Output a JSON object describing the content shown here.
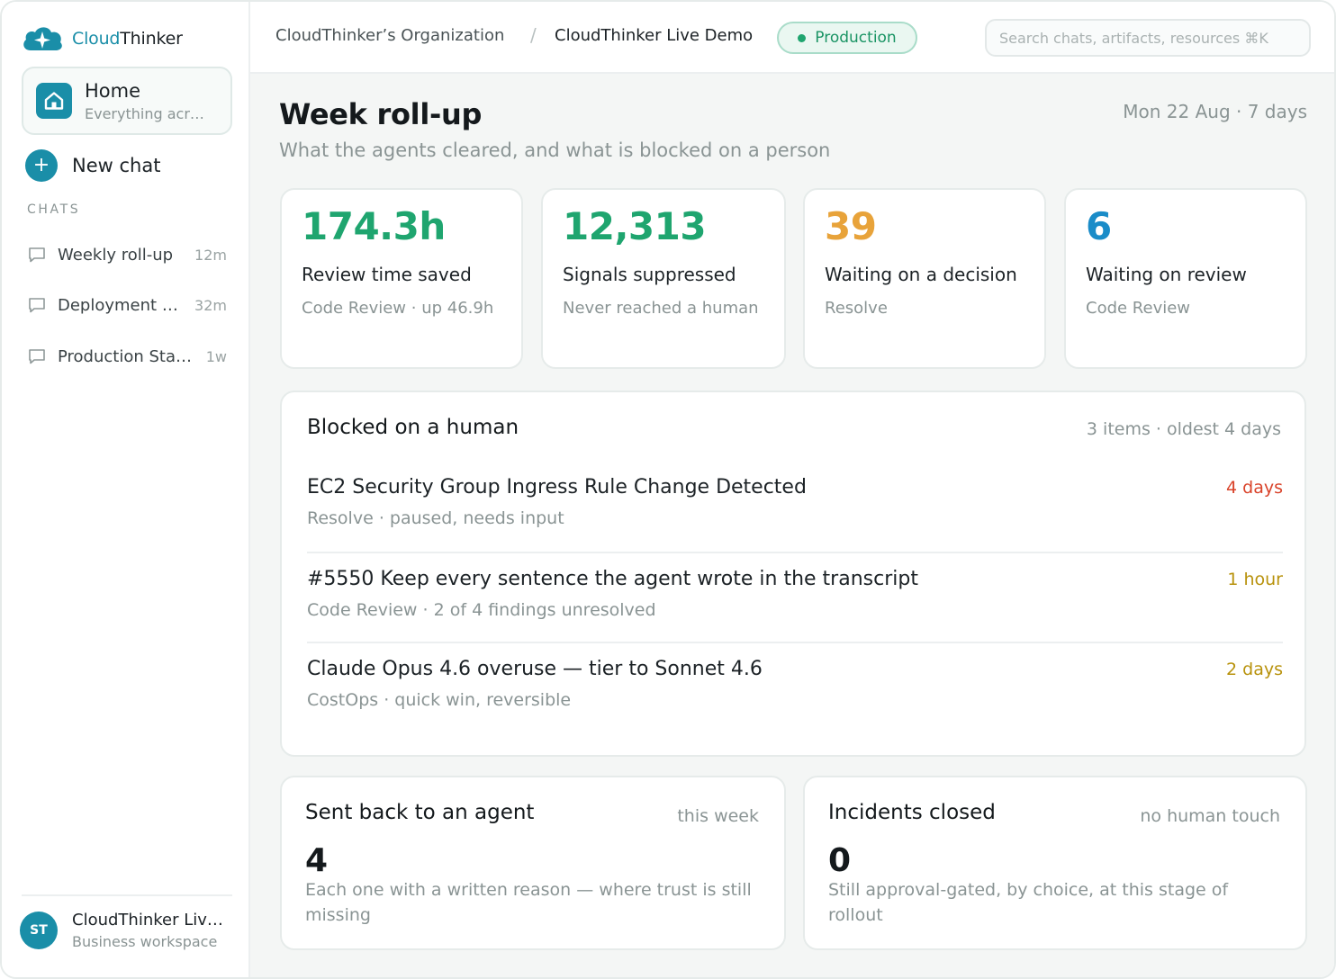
{
  "brand": {
    "name_part1": "Cloud",
    "name_part2": "Thinker"
  },
  "sidebar": {
    "home": {
      "title": "Home",
      "subtitle": "Everything acr…"
    },
    "new_chat": "New chat",
    "chats_heading": "CHATS",
    "chats": [
      {
        "label": "Weekly roll-up",
        "time": "12m"
      },
      {
        "label": "Deployment …",
        "time": "32m"
      },
      {
        "label": "Production Sta…",
        "time": "1w"
      }
    ],
    "workspace": {
      "initials": "ST",
      "name": "CloudThinker Liv…",
      "type": "Business workspace"
    }
  },
  "topbar": {
    "org": "CloudThinker’s Organization",
    "separator": "/",
    "project": "CloudThinker Live Demo",
    "environment": "Production",
    "search_placeholder": "Search chats, artifacts, resources ⌘K"
  },
  "page": {
    "title": "Week roll-up",
    "date": "Mon 22 Aug · 7 days",
    "subtitle": "What the agents cleared, and what is blocked on a person"
  },
  "stats": [
    {
      "value": "174.3h",
      "label": "Review time saved",
      "sub": "Code Review · up 46.9h",
      "color": "#1fa56f"
    },
    {
      "value": "12,313",
      "label": "Signals suppressed",
      "sub": "Never reached a human",
      "color": "#1fa56f"
    },
    {
      "value": "39",
      "label": "Waiting on a decision",
      "sub": "Resolve",
      "color": "#e8a33a"
    },
    {
      "value": "6",
      "label": "Waiting on review",
      "sub": "Code Review",
      "color": "#1a8cc8"
    }
  ],
  "blocked": {
    "title": "Blocked on a human",
    "meta": "3 items · oldest 4 days",
    "items": [
      {
        "title": "EC2 Security Group Ingress Rule Change Detected",
        "sub": "Resolve · paused, needs input",
        "age": "4 days",
        "age_color": "#d9432a"
      },
      {
        "title": "#5550 Keep every sentence the agent wrote in the transcript",
        "sub": "Code Review · 2 of 4 findings unresolved",
        "age": "1 hour",
        "age_color": "#b8920c"
      },
      {
        "title": "Claude Opus 4.6 overuse — tier to Sonnet 4.6",
        "sub": "CostOps · quick win, reversible",
        "age": "2 days",
        "age_color": "#b8920c"
      }
    ]
  },
  "sent_back": {
    "title": "Sent back to an agent",
    "meta": "this week",
    "value": "4",
    "desc": "Each one with a written reason — where trust is still missing"
  },
  "incidents": {
    "title": "Incidents closed",
    "meta": "no human touch",
    "value": "0",
    "desc": "Still approval-gated, by choice, at this stage of rollout"
  },
  "colors": {
    "accent": "#1a8ea8",
    "success": "#1fa56f",
    "warning": "#e8a33a",
    "info": "#1a8cc8",
    "danger": "#d9432a"
  }
}
